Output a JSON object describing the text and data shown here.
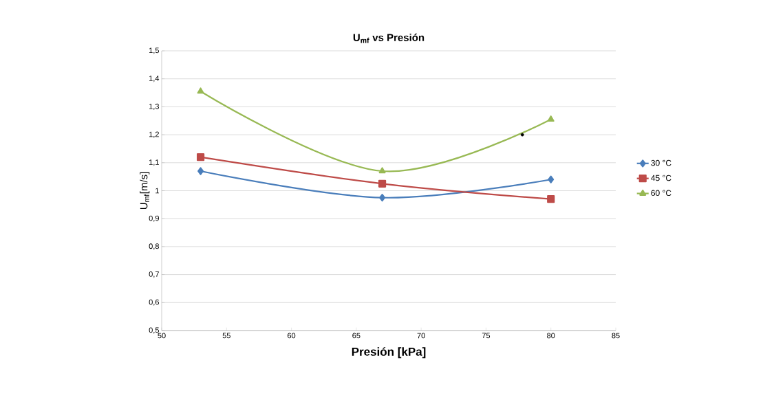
{
  "chart_data": {
    "type": "line",
    "title": "U$_{mf}$ vs Presión",
    "xlabel": "Presión  [kPa]",
    "ylabel": "U$_{mf}$[m/s]",
    "xlim": [
      50,
      85
    ],
    "xticks": [
      50,
      55,
      60,
      65,
      70,
      75,
      80,
      85
    ],
    "ylim": [
      0.5,
      1.5
    ],
    "yticks": [
      {
        "value": 0.5,
        "label": "0,5"
      },
      {
        "value": 0.6,
        "label": "0,6"
      },
      {
        "value": 0.7,
        "label": "0,7"
      },
      {
        "value": 0.8,
        "label": "0,8"
      },
      {
        "value": 0.9,
        "label": "0,9"
      },
      {
        "value": 1,
        "label": "1"
      },
      {
        "value": 1.1,
        "label": "1,1"
      },
      {
        "value": 1.2,
        "label": "1,2"
      },
      {
        "value": 1.3,
        "label": "1,3"
      },
      {
        "value": 1.4,
        "label": "1,4"
      },
      {
        "value": 1.5,
        "label": "1,5"
      }
    ],
    "grid": "y",
    "legend": "right",
    "series": [
      {
        "name": "30 °C",
        "color": "#4a7ebb",
        "marker": "diamond",
        "x": [
          53,
          67,
          80
        ],
        "values": [
          1.07,
          0.975,
          1.04
        ]
      },
      {
        "name": "45 °C",
        "color": "#be4b48",
        "marker": "square",
        "x": [
          53,
          67,
          80
        ],
        "values": [
          1.12,
          1.025,
          0.97
        ]
      },
      {
        "name": "60 °C",
        "color": "#98b954",
        "marker": "triangle",
        "x": [
          53,
          67,
          80
        ],
        "values": [
          1.355,
          1.07,
          1.255
        ]
      },
      {
        "type": "scatter",
        "color": "#000000",
        "marker": "circle",
        "x": [
          77.8
        ],
        "values": [
          1.2
        ]
      }
    ]
  }
}
